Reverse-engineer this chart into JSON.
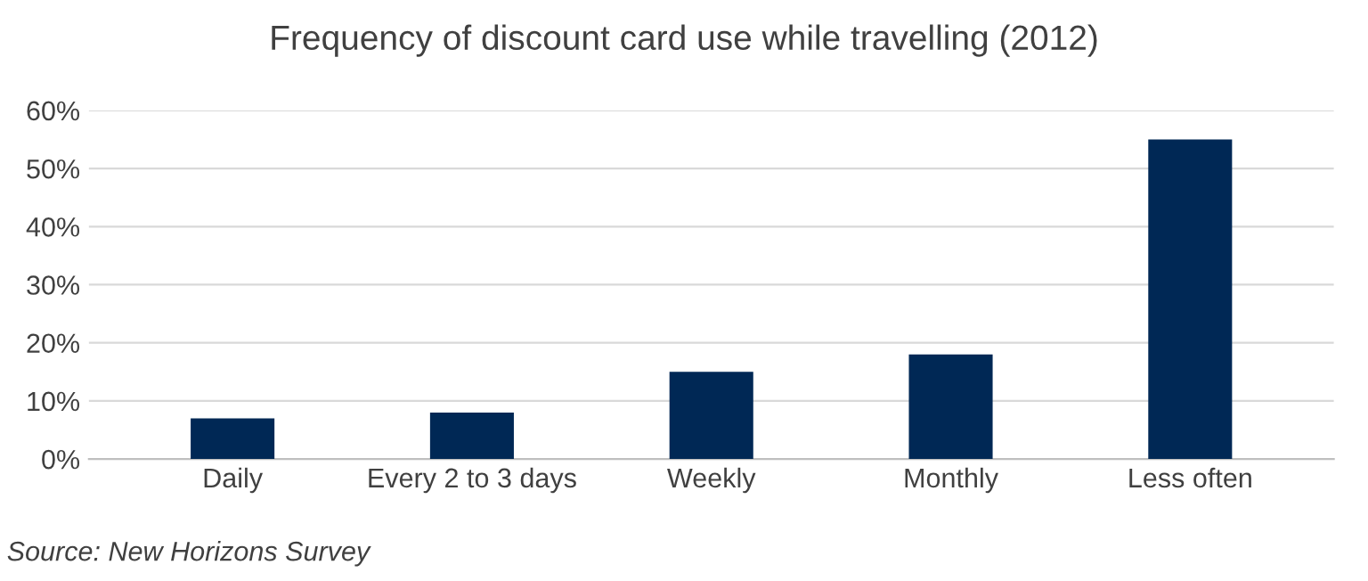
{
  "chart_data": {
    "type": "bar",
    "title": "Frequency of discount card use while travelling (2012)",
    "categories": [
      "Daily",
      "Every 2 to 3 days",
      "Weekly",
      "Monthly",
      "Less often"
    ],
    "values": [
      7,
      8,
      15,
      18,
      55
    ],
    "color": "#002855",
    "ylim": [
      0,
      60
    ],
    "yticks": [
      {
        "value": 0,
        "label": "0%"
      },
      {
        "value": 10,
        "label": "10%"
      },
      {
        "value": 20,
        "label": "20%"
      },
      {
        "value": 30,
        "label": "30%"
      },
      {
        "value": 40,
        "label": "40%"
      },
      {
        "value": 50,
        "label": "50%"
      },
      {
        "value": 60,
        "label": "60%"
      }
    ],
    "grid": "y",
    "annotations": [
      "Source: New Horizons Survey"
    ]
  }
}
